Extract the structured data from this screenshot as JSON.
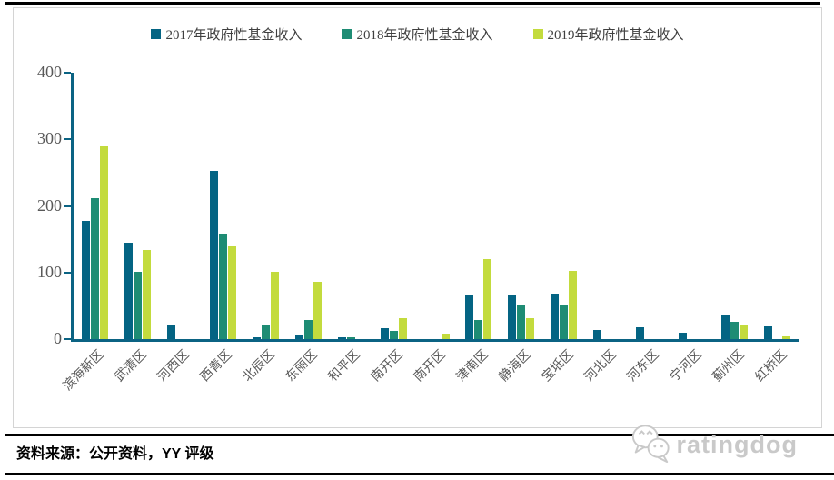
{
  "chart_data": {
    "type": "bar",
    "title": "",
    "categories": [
      "滨海新区",
      "武清区",
      "河西区",
      "西青区",
      "北辰区",
      "东丽区",
      "和平区",
      "南开区",
      "南开区",
      "津南区",
      "静海区",
      "宝坻区",
      "河北区",
      "河东区",
      "宁河区",
      "蓟州区",
      "红桥区"
    ],
    "series": [
      {
        "name": "2017年政府性基金收入",
        "color": "#046483",
        "values": [
          177,
          145,
          22,
          253,
          3,
          6,
          3,
          16,
          0,
          65,
          66,
          68,
          13,
          18,
          10,
          36,
          19
        ]
      },
      {
        "name": "2018年政府性基金收入",
        "color": "#1e8c74",
        "values": [
          212,
          101,
          0,
          159,
          20,
          29,
          3,
          12,
          0,
          29,
          52,
          50,
          0,
          0,
          0,
          26,
          0
        ]
      },
      {
        "name": "2019年政府性基金收入",
        "color": "#c3db3d",
        "values": [
          289,
          134,
          0,
          139,
          101,
          86,
          0,
          31,
          8,
          120,
          32,
          102,
          0,
          0,
          0,
          22,
          4
        ]
      }
    ],
    "xlabel": "",
    "ylabel": "",
    "ylim": [
      0,
      400
    ],
    "yticks": [
      0,
      100,
      200,
      300,
      400
    ],
    "legend_position": "top",
    "grid": false,
    "axis_color": "#0b6383",
    "tick_label_color": "#595959"
  },
  "footer": {
    "source_note": "资料来源：公开资料，YY 评级",
    "watermark": "ratingdog"
  }
}
